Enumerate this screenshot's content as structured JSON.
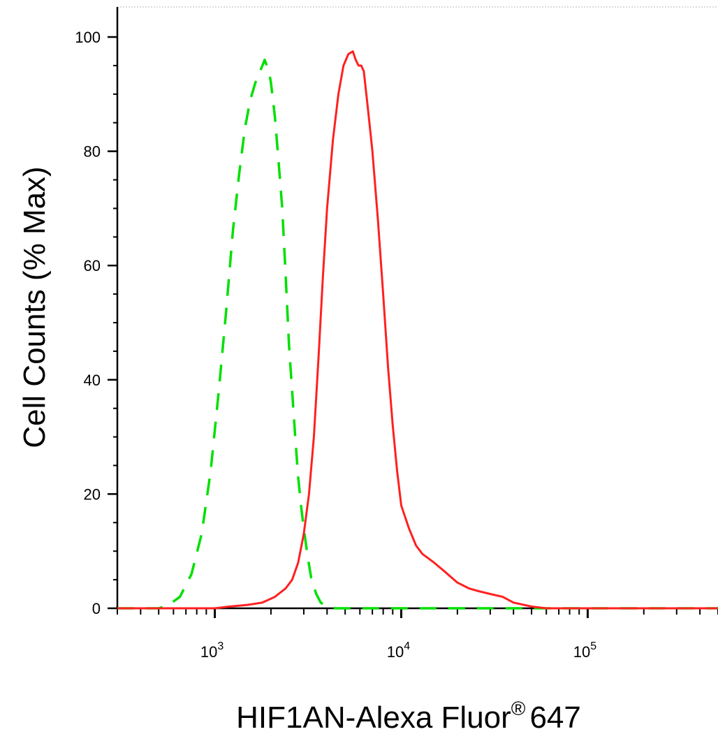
{
  "chart_data": {
    "type": "line",
    "title": "",
    "xlabel": "HIF1AN-Alexa Fluor",
    "xlabel_superscript": "®",
    "xlabel_suffix": "647",
    "ylabel": "Cell Counts (% Max)",
    "x_scale": "log",
    "xlim": [
      300,
      500000
    ],
    "ylim": [
      0,
      100
    ],
    "y_ticks": [
      {
        "value": 0,
        "label": "0"
      },
      {
        "value": 20,
        "label": "20"
      },
      {
        "value": 40,
        "label": "40"
      },
      {
        "value": 60,
        "label": "60"
      },
      {
        "value": 80,
        "label": "80"
      },
      {
        "value": 100,
        "label": "100"
      }
    ],
    "x_major_ticks": [
      {
        "value": 1000,
        "base": "10",
        "exp": "3"
      },
      {
        "value": 10000,
        "base": "10",
        "exp": "4"
      },
      {
        "value": 100000,
        "base": "10",
        "exp": "5"
      }
    ],
    "grid": false,
    "legend": "none",
    "series": [
      {
        "color": "#00e000",
        "style": "dashed",
        "x": [
          300,
          500,
          560,
          650,
          750,
          850,
          950,
          1050,
          1150,
          1250,
          1350,
          1450,
          1550,
          1650,
          1750,
          1800,
          1850,
          1900,
          1950,
          2000,
          2050,
          2100,
          2200,
          2300,
          2400,
          2500,
          2600,
          2700,
          2800,
          2900,
          3000,
          3150,
          3300,
          3500,
          3700,
          3900,
          4100,
          4400,
          4800,
          6000,
          10000,
          50000,
          100000,
          500000
        ],
        "y": [
          0,
          0,
          0.5,
          2,
          6,
          13,
          24,
          38,
          52,
          66,
          76,
          84,
          89,
          92,
          94,
          95,
          96,
          95,
          94,
          92,
          89,
          86,
          78,
          70,
          58,
          46,
          38,
          30,
          23,
          18,
          14,
          9,
          5,
          2.5,
          1,
          0.5,
          0.2,
          0,
          0,
          0,
          0,
          0,
          0,
          0
        ]
      },
      {
        "color": "#ff2020",
        "style": "solid",
        "x": [
          300,
          1000,
          1200,
          1500,
          1800,
          2100,
          2400,
          2600,
          2800,
          3000,
          3200,
          3400,
          3600,
          3800,
          4000,
          4300,
          4600,
          4900,
          5200,
          5500,
          5700,
          5900,
          6100,
          6300,
          6600,
          7000,
          7500,
          8000,
          8500,
          9000,
          9500,
          10000,
          11000,
          12000,
          13000,
          15000,
          17000,
          20000,
          23000,
          26000,
          30000,
          35000,
          40000,
          50000,
          60000,
          80000,
          500000
        ],
        "y": [
          0,
          0,
          0.3,
          0.6,
          1,
          2,
          3.5,
          5,
          8,
          13,
          20,
          30,
          44,
          58,
          70,
          82,
          90,
          95,
          97,
          97.5,
          96,
          95,
          95,
          94,
          88,
          80,
          68,
          55,
          42,
          32,
          24,
          18,
          14,
          11,
          9.5,
          8,
          6.5,
          4.5,
          3.5,
          3,
          2.5,
          2,
          1,
          0.3,
          0,
          0,
          0
        ]
      }
    ]
  }
}
